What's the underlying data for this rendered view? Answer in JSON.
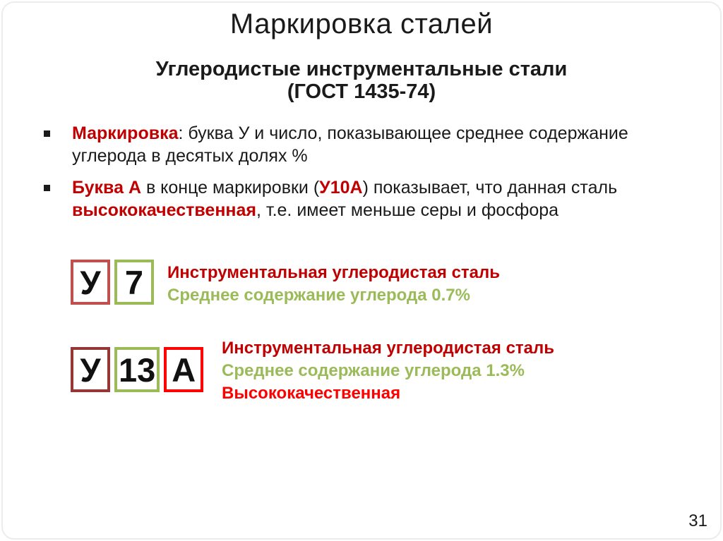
{
  "slide": {
    "title": "Маркировка сталей",
    "subtitle_line1": "Углеродистые инструментальные стали",
    "subtitle_line2": "(ГОСТ 1435-74)",
    "page_number": "31"
  },
  "colors": {
    "text_black": "#1a1a1a",
    "dark_red": "#C00000",
    "bright_red": "#FF0000",
    "olive_green": "#9BBB59",
    "box_red": "#C0504D",
    "box_brown_red": "#953735",
    "border_gray": "#ececec"
  },
  "bullets": [
    {
      "segments": [
        {
          "text": "Маркировка",
          "style": "red-bold"
        },
        {
          "text": ": буква У и число, показывающее среднее содержание углерода в десятых долях %",
          "style": "plain"
        }
      ]
    },
    {
      "segments": [
        {
          "text": "Буква А",
          "style": "red-bold"
        },
        {
          "text": " в конце маркировки (",
          "style": "plain"
        },
        {
          "text": "У10А",
          "style": "red-bold"
        },
        {
          "text": ") показывает, что данная сталь ",
          "style": "plain"
        },
        {
          "text": "высококачественная",
          "style": "red-bold"
        },
        {
          "text": ", т.е. имеет меньше серы и фосфора",
          "style": "plain"
        }
      ]
    }
  ],
  "examples": [
    {
      "boxes": [
        {
          "char": "У",
          "border": "#C0504D"
        },
        {
          "char": "7",
          "border": "#9BBB59"
        }
      ],
      "lines": [
        {
          "text": "Инструментальная углеродистая сталь",
          "color": "#C00000"
        },
        {
          "text": "Среднее содержание углерода 0.7%",
          "color": "#9BBB59"
        }
      ]
    },
    {
      "boxes": [
        {
          "char": "У",
          "border": "#953735"
        },
        {
          "char": "13",
          "border": "#9BBB59"
        },
        {
          "char": "А",
          "border": "#FF0000"
        }
      ],
      "lines": [
        {
          "text": "Инструментальная углеродистая сталь",
          "color": "#C00000"
        },
        {
          "text": "Среднее содержание углерода 1.3%",
          "color": "#9BBB59"
        },
        {
          "text": "Высококачественная",
          "color": "#FF0000"
        }
      ]
    }
  ]
}
